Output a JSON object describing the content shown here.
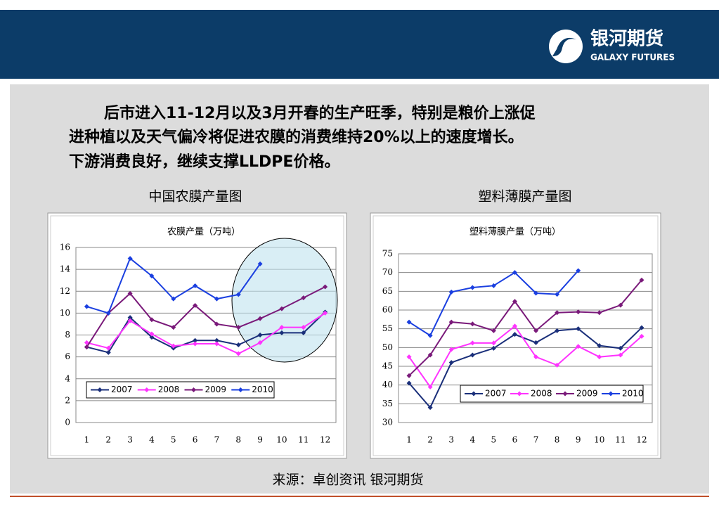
{
  "header": {
    "logo_cn": "银河期货",
    "logo_en": "GALAXY FUTURES"
  },
  "paragraph": [
    "后市进入11-12月以及3月开春的生产旺季，特别是粮价上涨促",
    "进种植以及天气偏冷将促进农膜的消费维持20%以上的速度增长。",
    "下游消费良好，继续支撑LLDPE价格。"
  ],
  "captions": [
    "中国农膜产量图",
    "塑料薄膜产量图"
  ],
  "source": "来源：卓创资讯 银河期货",
  "chart_data": [
    {
      "type": "line",
      "title": "农膜产量（万吨）",
      "categories": [
        "1",
        "2",
        "3",
        "4",
        "5",
        "6",
        "7",
        "8",
        "9",
        "10",
        "11",
        "12"
      ],
      "ylim": [
        0,
        16
      ],
      "yticks": [
        0,
        2,
        4,
        6,
        8,
        10,
        12,
        14,
        16
      ],
      "grid": true,
      "series": [
        {
          "name": "2007",
          "color": "#1a2f7a",
          "values": [
            6.9,
            6.4,
            9.6,
            7.8,
            6.8,
            7.5,
            7.5,
            7.1,
            8.0,
            8.2,
            8.2,
            10.1
          ]
        },
        {
          "name": "2008",
          "color": "#ff33ff",
          "values": [
            7.3,
            6.8,
            9.3,
            8.1,
            7.0,
            7.2,
            7.2,
            6.3,
            7.3,
            8.7,
            8.7,
            10.0
          ]
        },
        {
          "name": "2009",
          "color": "#7a1a7a",
          "values": [
            6.9,
            10.0,
            11.8,
            9.4,
            8.7,
            10.7,
            9.0,
            8.7,
            9.5,
            10.4,
            11.4,
            12.4
          ]
        },
        {
          "name": "2010",
          "color": "#1a3fe0",
          "values": [
            10.6,
            10.0,
            15.0,
            13.4,
            11.3,
            12.5,
            11.3,
            11.7,
            14.5,
            null,
            null,
            null
          ]
        }
      ]
    },
    {
      "type": "line",
      "title": "塑料薄膜产量（万吨）",
      "categories": [
        "1",
        "2",
        "3",
        "4",
        "5",
        "6",
        "7",
        "8",
        "9",
        "10",
        "11",
        "12"
      ],
      "ylim": [
        30,
        75
      ],
      "yticks": [
        30,
        35,
        40,
        45,
        50,
        55,
        60,
        65,
        70,
        75
      ],
      "grid": true,
      "series": [
        {
          "name": "2007",
          "color": "#1a2f7a",
          "values": [
            40.5,
            34,
            46,
            48,
            49.8,
            53.5,
            51.3,
            54.5,
            55,
            50.5,
            49.8,
            55.3
          ]
        },
        {
          "name": "2008",
          "color": "#ff33ff",
          "values": [
            47.5,
            39.5,
            49.5,
            51.2,
            51.2,
            55.7,
            47.5,
            45.3,
            50.3,
            47.5,
            48,
            53
          ]
        },
        {
          "name": "2009",
          "color": "#7a1a7a",
          "values": [
            42.5,
            48,
            56.8,
            56.3,
            54.5,
            62.3,
            54.5,
            59.3,
            59.5,
            59.3,
            61.3,
            68
          ]
        },
        {
          "name": "2010",
          "color": "#1a3fe0",
          "values": [
            56.8,
            53.2,
            64.8,
            66,
            66.5,
            70,
            64.5,
            64.2,
            70.5,
            null,
            null,
            null
          ]
        }
      ]
    }
  ]
}
